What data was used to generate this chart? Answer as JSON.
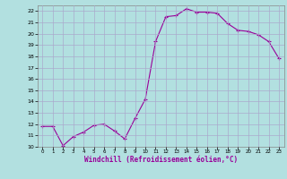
{
  "x": [
    0,
    1,
    2,
    3,
    4,
    5,
    6,
    7,
    8,
    9,
    10,
    11,
    12,
    13,
    14,
    15,
    16,
    17,
    18,
    19,
    20,
    21,
    22,
    23
  ],
  "y": [
    11.8,
    11.8,
    10.1,
    10.9,
    11.3,
    11.9,
    12.0,
    11.4,
    10.7,
    12.5,
    14.2,
    19.3,
    21.5,
    21.6,
    22.2,
    21.9,
    21.9,
    21.8,
    20.9,
    20.3,
    20.2,
    19.9,
    19.3,
    17.8
  ],
  "xlabel": "Windchill (Refroidissement éolien,°C)",
  "xlim": [
    -0.5,
    23.5
  ],
  "ylim": [
    10,
    22.5
  ],
  "yticks": [
    10,
    11,
    12,
    13,
    14,
    15,
    16,
    17,
    18,
    19,
    20,
    21,
    22
  ],
  "xticks": [
    0,
    1,
    2,
    3,
    4,
    5,
    6,
    7,
    8,
    9,
    10,
    11,
    12,
    13,
    14,
    15,
    16,
    17,
    18,
    19,
    20,
    21,
    22,
    23
  ],
  "line_color": "#990099",
  "marker": "+",
  "bg_color": "#b2e0e0",
  "grid_color": "#aaaacc",
  "spine_color": "#888888"
}
